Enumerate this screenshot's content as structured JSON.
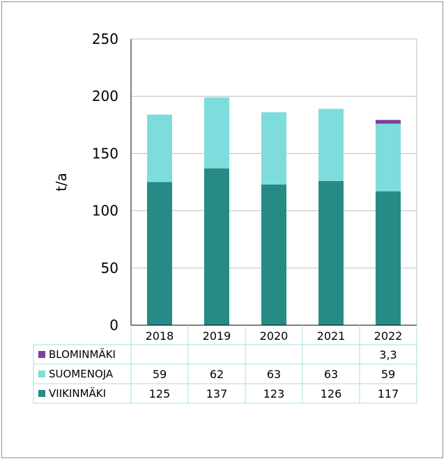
{
  "chart_data": {
    "type": "bar",
    "stacked": true,
    "categories": [
      "2018",
      "2019",
      "2020",
      "2021",
      "2022"
    ],
    "series": [
      {
        "name": "VIIKINMÄKI",
        "values": [
          125,
          137,
          123,
          126,
          117
        ],
        "labels": [
          "125",
          "137",
          "123",
          "126",
          "117"
        ],
        "color": "#268b85"
      },
      {
        "name": "SUOMENOJA",
        "values": [
          59,
          62,
          63,
          63,
          59
        ],
        "labels": [
          "59",
          "62",
          "63",
          "63",
          "59"
        ],
        "color": "#7edddc"
      },
      {
        "name": "BLOMINMÄKI",
        "values": [
          null,
          null,
          null,
          null,
          3.3
        ],
        "labels": [
          "",
          "",
          "",
          "",
          "3,3"
        ],
        "color": "#7b3f9e"
      }
    ],
    "table_row_order": [
      2,
      1,
      0
    ],
    "ylabel": "t/a",
    "ylim": [
      0,
      250
    ],
    "yticks": [
      0,
      50,
      100,
      150,
      200,
      250
    ],
    "grid": true,
    "data_table": true,
    "colors": {
      "grid": "#bfbfbf",
      "table_border": "#a7dede"
    }
  }
}
